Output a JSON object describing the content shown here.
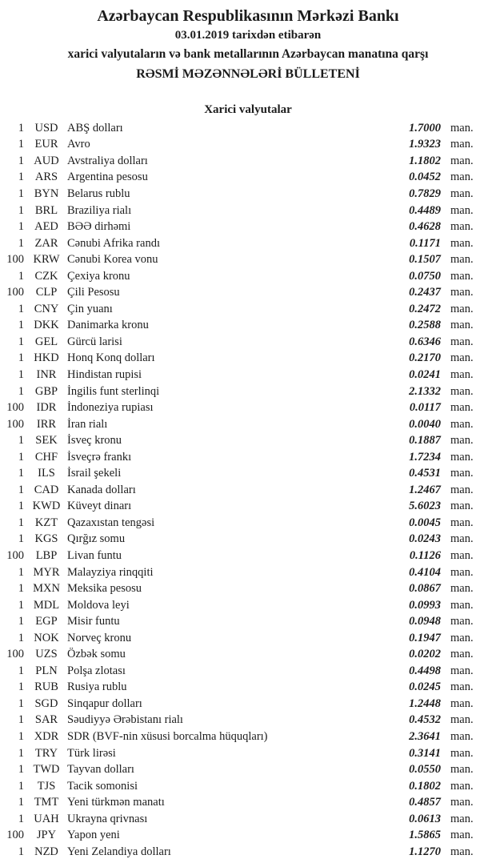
{
  "header": {
    "title": "Azərbaycan Respublikasının Mərkəzi Bankı",
    "date_line": "03.01.2019 tarixdən etibarən",
    "subtitle": "xarici valyutaların və bank metallarının Azərbaycan manatına qarşı",
    "bulletin_title": "RƏSMİ MƏZƏNNƏLƏRİ BÜLLETENİ"
  },
  "section": {
    "title": "Xarici valyutalar"
  },
  "unit_label": "man.",
  "text_color": "#1c1c1c",
  "background_color": "#ffffff",
  "rates": [
    {
      "qty": "1",
      "code": "USD",
      "name": "ABŞ dolları",
      "rate": "1.7000"
    },
    {
      "qty": "1",
      "code": "EUR",
      "name": "Avro",
      "rate": "1.9323"
    },
    {
      "qty": "1",
      "code": "AUD",
      "name": "Avstraliya dolları",
      "rate": "1.1802"
    },
    {
      "qty": "1",
      "code": "ARS",
      "name": "Argentina pesosu",
      "rate": "0.0452"
    },
    {
      "qty": "1",
      "code": "BYN",
      "name": "Belarus rublu",
      "rate": "0.7829"
    },
    {
      "qty": "1",
      "code": "BRL",
      "name": "Braziliya rialı",
      "rate": "0.4489"
    },
    {
      "qty": "1",
      "code": "AED",
      "name": "BƏƏ dirhəmi",
      "rate": "0.4628"
    },
    {
      "qty": "1",
      "code": "ZAR",
      "name": "Cənubi Afrika randı",
      "rate": "0.1171"
    },
    {
      "qty": "100",
      "code": "KRW",
      "name": "Cənubi Korea vonu",
      "rate": "0.1507"
    },
    {
      "qty": "1",
      "code": "CZK",
      "name": "Çexiya kronu",
      "rate": "0.0750"
    },
    {
      "qty": "100",
      "code": "CLP",
      "name": "Çili Pesosu",
      "rate": "0.2437"
    },
    {
      "qty": "1",
      "code": "CNY",
      "name": "Çin yuanı",
      "rate": "0.2472"
    },
    {
      "qty": "1",
      "code": "DKK",
      "name": "Danimarka kronu",
      "rate": "0.2588"
    },
    {
      "qty": "1",
      "code": "GEL",
      "name": "Gürcü larisi",
      "rate": "0.6346"
    },
    {
      "qty": "1",
      "code": "HKD",
      "name": "Honq Konq dolları",
      "rate": "0.2170"
    },
    {
      "qty": "1",
      "code": "INR",
      "name": "Hindistan rupisi",
      "rate": "0.0241"
    },
    {
      "qty": "1",
      "code": "GBP",
      "name": "İngilis funt sterlinqi",
      "rate": "2.1332"
    },
    {
      "qty": "100",
      "code": "IDR",
      "name": "İndoneziya rupiası",
      "rate": "0.0117"
    },
    {
      "qty": "100",
      "code": "IRR",
      "name": "İran rialı",
      "rate": "0.0040"
    },
    {
      "qty": "1",
      "code": "SEK",
      "name": "İsveç kronu",
      "rate": "0.1887"
    },
    {
      "qty": "1",
      "code": "CHF",
      "name": "İsveçrə frankı",
      "rate": "1.7234"
    },
    {
      "qty": "1",
      "code": "ILS",
      "name": "İsrail şekeli",
      "rate": "0.4531"
    },
    {
      "qty": "1",
      "code": "CAD",
      "name": "Kanada dolları",
      "rate": "1.2467"
    },
    {
      "qty": "1",
      "code": "KWD",
      "name": "Küveyt dinarı",
      "rate": "5.6023"
    },
    {
      "qty": "1",
      "code": "KZT",
      "name": "Qazaxıstan tengəsi",
      "rate": "0.0045"
    },
    {
      "qty": "1",
      "code": "KGS",
      "name": "Qırğız somu",
      "rate": "0.0243"
    },
    {
      "qty": "100",
      "code": "LBP",
      "name": "Livan funtu",
      "rate": "0.1126"
    },
    {
      "qty": "1",
      "code": "MYR",
      "name": "Malayziya rinqqiti",
      "rate": "0.4104"
    },
    {
      "qty": "1",
      "code": "MXN",
      "name": "Meksika pesosu",
      "rate": "0.0867"
    },
    {
      "qty": "1",
      "code": "MDL",
      "name": "Moldova leyi",
      "rate": "0.0993"
    },
    {
      "qty": "1",
      "code": "EGP",
      "name": "Misir funtu",
      "rate": "0.0948"
    },
    {
      "qty": "1",
      "code": "NOK",
      "name": "Norveç kronu",
      "rate": "0.1947"
    },
    {
      "qty": "100",
      "code": "UZS",
      "name": "Özbək somu",
      "rate": "0.0202"
    },
    {
      "qty": "1",
      "code": "PLN",
      "name": "Polşa zlotası",
      "rate": "0.4498"
    },
    {
      "qty": "1",
      "code": "RUB",
      "name": "Rusiya rublu",
      "rate": "0.0245"
    },
    {
      "qty": "1",
      "code": "SGD",
      "name": "Sinqapur dolları",
      "rate": "1.2448"
    },
    {
      "qty": "1",
      "code": "SAR",
      "name": "Səudiyyə Ərəbistanı rialı",
      "rate": "0.4532"
    },
    {
      "qty": "1",
      "code": "XDR",
      "name": "SDR (BVF-nin xüsusi borcalma hüquqları)",
      "rate": "2.3641"
    },
    {
      "qty": "1",
      "code": "TRY",
      "name": "Türk lirəsi",
      "rate": "0.3141"
    },
    {
      "qty": "1",
      "code": "TWD",
      "name": "Tayvan dolları",
      "rate": "0.0550"
    },
    {
      "qty": "1",
      "code": "TJS",
      "name": "Tacik somonisi",
      "rate": "0.1802"
    },
    {
      "qty": "1",
      "code": "TMT",
      "name": "Yeni türkmən manatı",
      "rate": "0.4857"
    },
    {
      "qty": "1",
      "code": "UAH",
      "name": "Ukrayna qrivnası",
      "rate": "0.0613"
    },
    {
      "qty": "100",
      "code": "JPY",
      "name": "Yapon yeni",
      "rate": "1.5865"
    },
    {
      "qty": "1",
      "code": "NZD",
      "name": "Yeni Zelandiya dolları",
      "rate": "1.1270"
    }
  ]
}
